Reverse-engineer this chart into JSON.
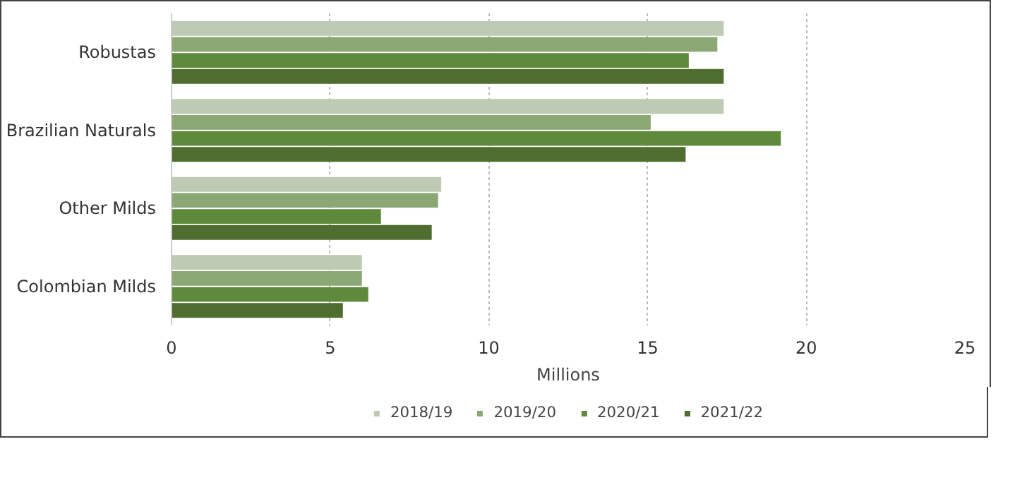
{
  "chart_data": {
    "type": "bar",
    "orientation": "horizontal",
    "xlabel": "Millions",
    "categories": [
      "Robustas",
      "Brazilian Naturals",
      "Other Milds",
      "Colombian Milds"
    ],
    "series": [
      {
        "name": "2018/19",
        "color": "#bfcab4",
        "values": [
          17.4,
          17.4,
          8.5,
          6.0
        ]
      },
      {
        "name": "2019/20",
        "color": "#8ba774",
        "values": [
          17.2,
          15.1,
          8.4,
          6.0
        ]
      },
      {
        "name": "2020/21",
        "color": "#5f8a3b",
        "values": [
          16.3,
          19.2,
          6.6,
          6.2
        ]
      },
      {
        "name": "2021/22",
        "color": "#4e6d2e",
        "values": [
          17.4,
          16.2,
          8.2,
          5.4
        ]
      }
    ],
    "xlim": [
      0,
      25
    ],
    "xticks": [
      0,
      5,
      10,
      15,
      20,
      25
    ],
    "grid": "x",
    "legend": "bottom"
  }
}
